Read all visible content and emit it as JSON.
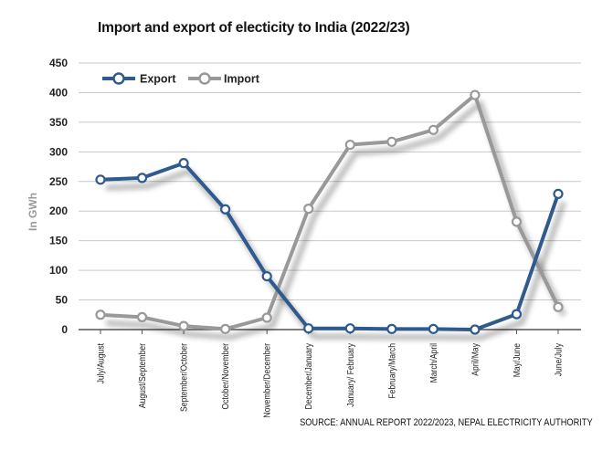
{
  "header": {
    "title": "Import and export of electicity to India (2022/23)"
  },
  "footer": {
    "source": "SOURCE: ANNUAL REPORT 2022/2023, NEPAL ELECTRICITY AUTHORITY"
  },
  "chart_data": {
    "type": "line",
    "title": "Import and export of electicity to India (2022/23)",
    "xlabel": "",
    "ylabel": "In GWh",
    "ylim": [
      0,
      450
    ],
    "yticks": [
      0,
      50,
      100,
      150,
      200,
      250,
      300,
      350,
      400,
      450
    ],
    "grid": true,
    "legend_position": "top-left",
    "categories": [
      "July/August",
      "August/September",
      "September/October",
      "October/November",
      "November/December",
      "December/January",
      "January/ February",
      "February/March",
      "March/April",
      "April/May",
      "May/June",
      "June/July"
    ],
    "series": [
      {
        "name": "Export",
        "color": "#2e5a8e",
        "values": [
          253,
          256,
          281,
          203,
          90,
          2,
          2,
          1,
          1,
          0,
          26,
          229
        ]
      },
      {
        "name": "Import",
        "color": "#999999",
        "values": [
          25,
          21,
          6,
          1,
          20,
          204,
          312,
          317,
          337,
          396,
          182,
          38
        ]
      }
    ]
  }
}
